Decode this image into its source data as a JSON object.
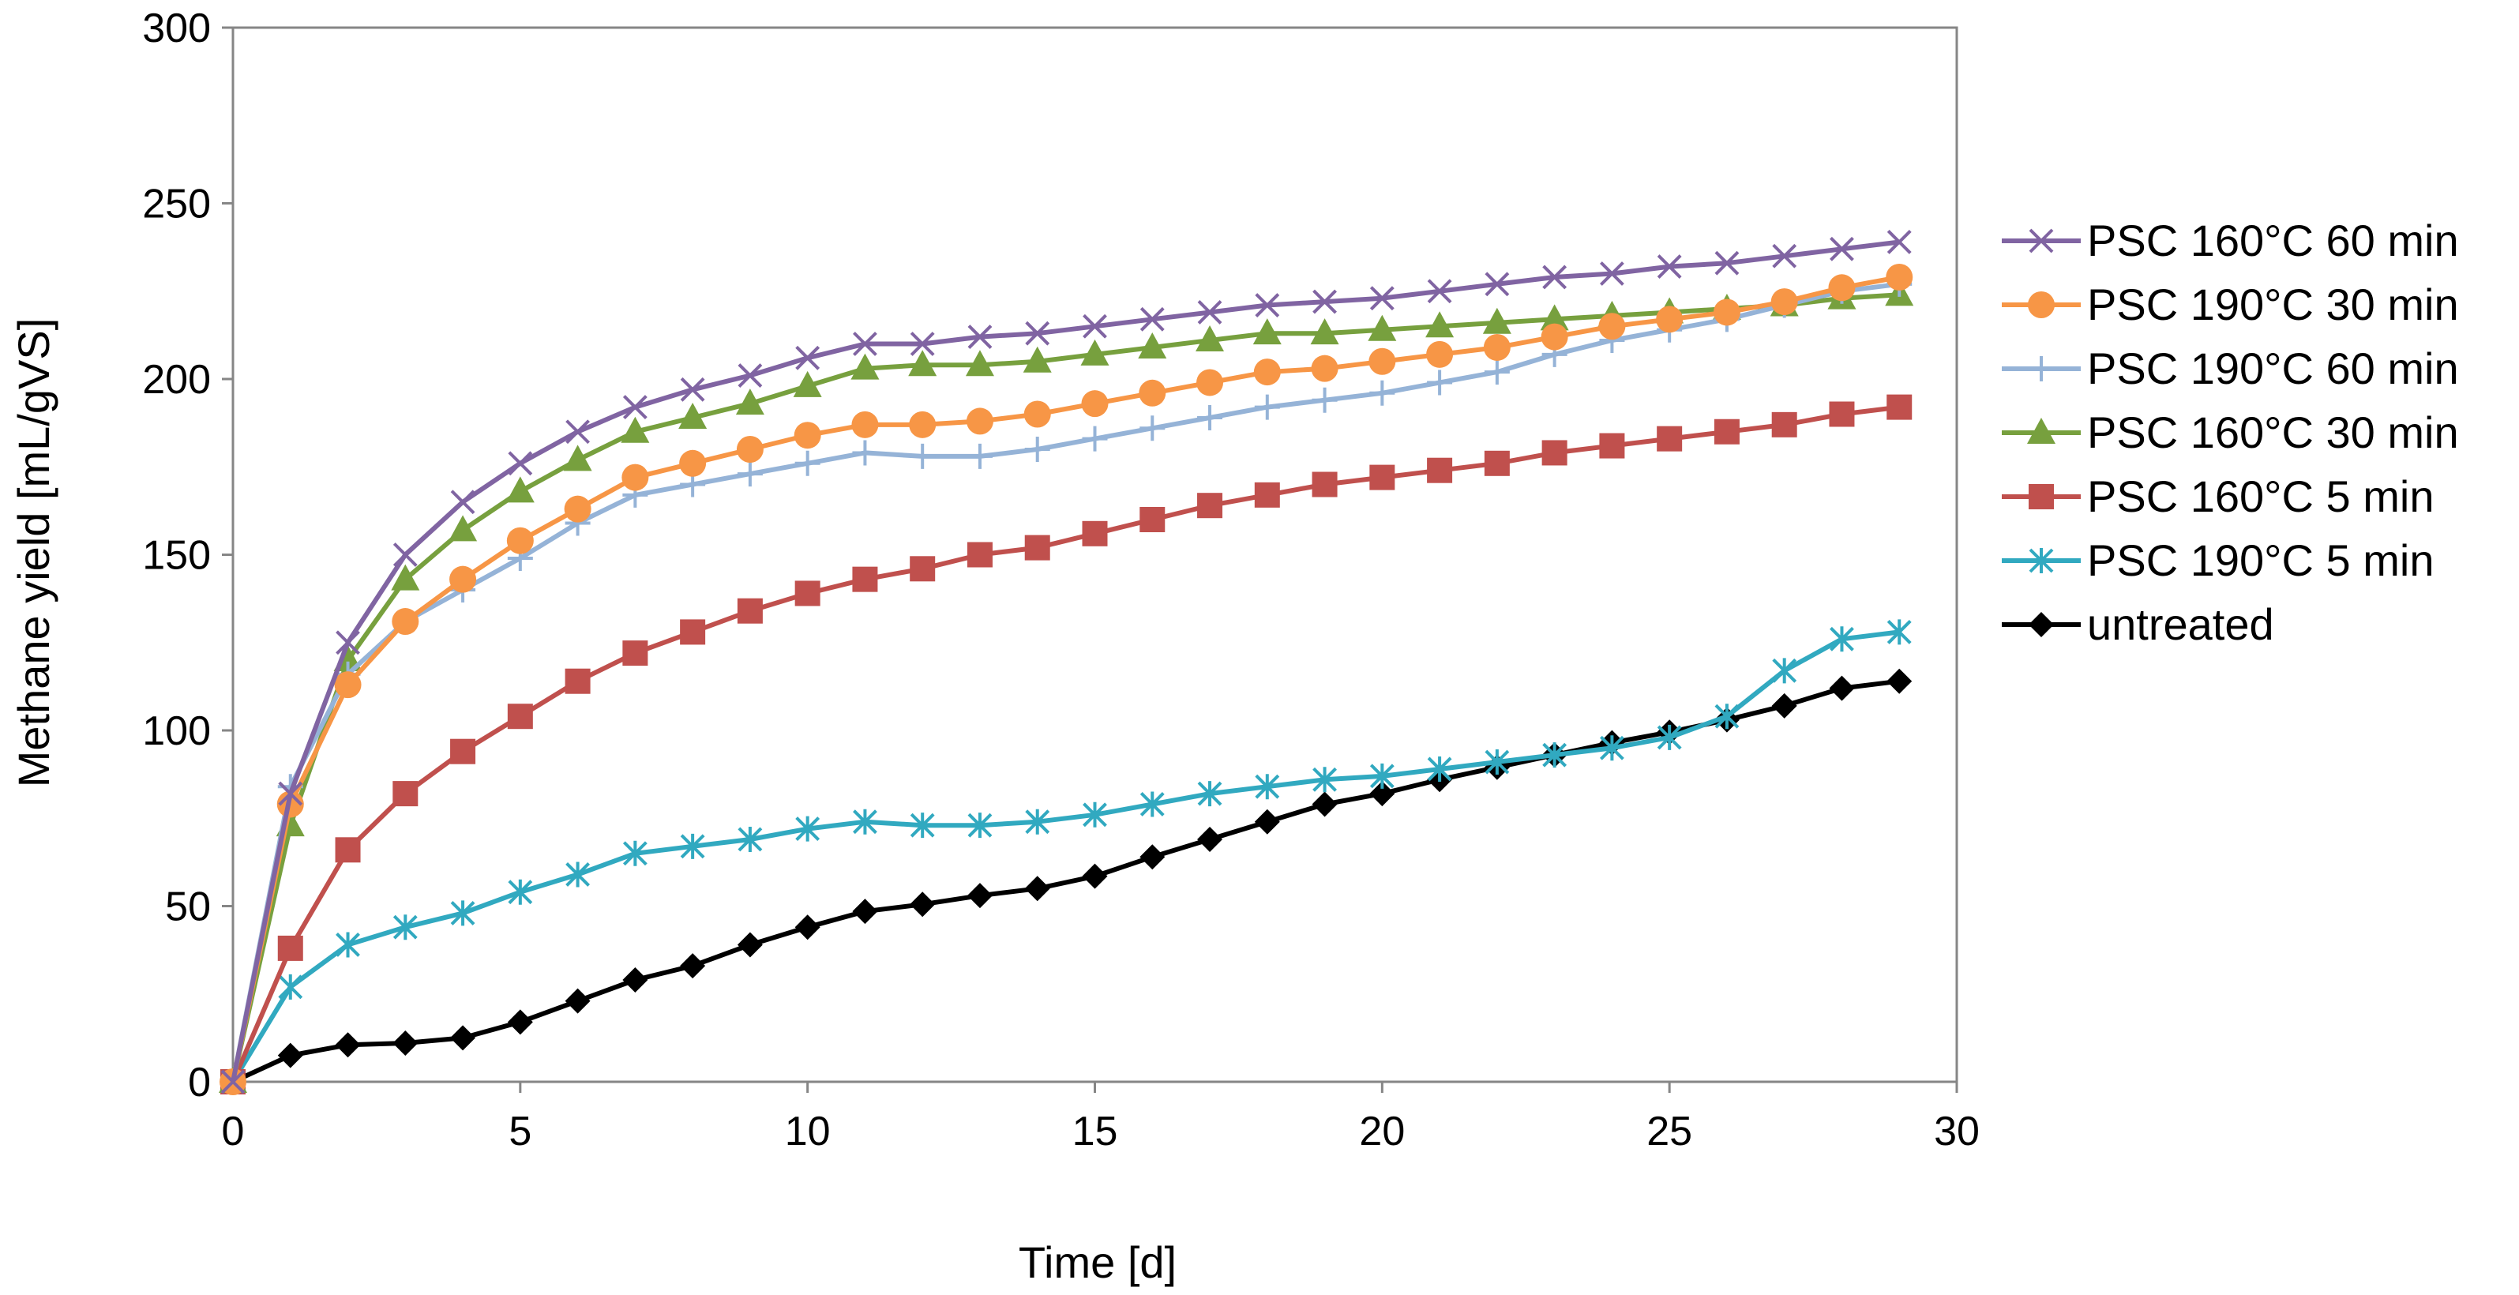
{
  "chart_data": {
    "type": "line",
    "title": "",
    "xlabel": "Time [d]",
    "ylabel": "Methane yield [mL/gVS]",
    "xlim": [
      0,
      30
    ],
    "ylim": [
      0,
      300
    ],
    "xticks": [
      0,
      5,
      10,
      15,
      20,
      25,
      30
    ],
    "yticks": [
      0,
      50,
      100,
      150,
      200,
      250,
      300
    ],
    "grid": false,
    "legend_position": "right",
    "x": [
      0,
      1,
      2,
      3,
      4,
      5,
      6,
      7,
      8,
      9,
      10,
      11,
      12,
      13,
      14,
      15,
      16,
      17,
      18,
      19,
      20,
      21,
      22,
      23,
      24,
      25,
      26,
      27,
      28,
      29
    ],
    "series": [
      {
        "name": "PSC 160°C 60 min",
        "color": "#8064a2",
        "marker": "x",
        "values": [
          0,
          82,
          125,
          150,
          165,
          176,
          185,
          192,
          197,
          201,
          206,
          210,
          210,
          212,
          213,
          215,
          217,
          219,
          221,
          222,
          223,
          225,
          227,
          229,
          230,
          232,
          233,
          235,
          237,
          239
        ]
      },
      {
        "name": "PSC 190°C 30 min",
        "color": "#f79646",
        "marker": "circle",
        "values": [
          0,
          79,
          113,
          131,
          143,
          154,
          163,
          172,
          176,
          180,
          184,
          187,
          187,
          188,
          190,
          193,
          196,
          199,
          202,
          203,
          205,
          207,
          209,
          212,
          215,
          217,
          219,
          222,
          226,
          229
        ]
      },
      {
        "name": "PSC 190°C 60 min",
        "color": "#95b3d7",
        "marker": "plus",
        "values": [
          0,
          84,
          116,
          131,
          140,
          149,
          159,
          167,
          170,
          173,
          176,
          179,
          178,
          178,
          180,
          183,
          186,
          189,
          192,
          194,
          196,
          199,
          202,
          207,
          211,
          214,
          217,
          221,
          225,
          227
        ]
      },
      {
        "name": "PSC 160°C 30 min",
        "color": "#77a03e",
        "marker": "triangle",
        "values": [
          0,
          73,
          120,
          143,
          157,
          168,
          177,
          185,
          189,
          193,
          198,
          203,
          204,
          204,
          205,
          207,
          209,
          211,
          213,
          213,
          214,
          215,
          216,
          217,
          218,
          219,
          220,
          221,
          223,
          224
        ]
      },
      {
        "name": "PSC 160°C 5 min",
        "color": "#c0504d",
        "marker": "square",
        "values": [
          0,
          38,
          66,
          82,
          94,
          104,
          114,
          122,
          128,
          134,
          139,
          143,
          146,
          150,
          152,
          156,
          160,
          164,
          167,
          170,
          172,
          174,
          176,
          179,
          181,
          183,
          185,
          187,
          190,
          192
        ]
      },
      {
        "name": "PSC 190°C 5 min",
        "color": "#31a9c0",
        "marker": "asterisk",
        "values": [
          0,
          27,
          39,
          44,
          48,
          54,
          59,
          65,
          67,
          69,
          72,
          74,
          73,
          73,
          74,
          76,
          79,
          82,
          84,
          86,
          87,
          89,
          91,
          93,
          95,
          98,
          104,
          117,
          126,
          128
        ]
      },
      {
        "name": "untreated",
        "color": "#000000",
        "marker": "diamond",
        "values": [
          0,
          7.5,
          10.5,
          11,
          12.5,
          17,
          23,
          29,
          33,
          39,
          44,
          48.5,
          50.5,
          53,
          55,
          58.5,
          64,
          69,
          74,
          79,
          82,
          86,
          89.5,
          93,
          96.5,
          99.5,
          103,
          107,
          112,
          114
        ]
      }
    ]
  }
}
